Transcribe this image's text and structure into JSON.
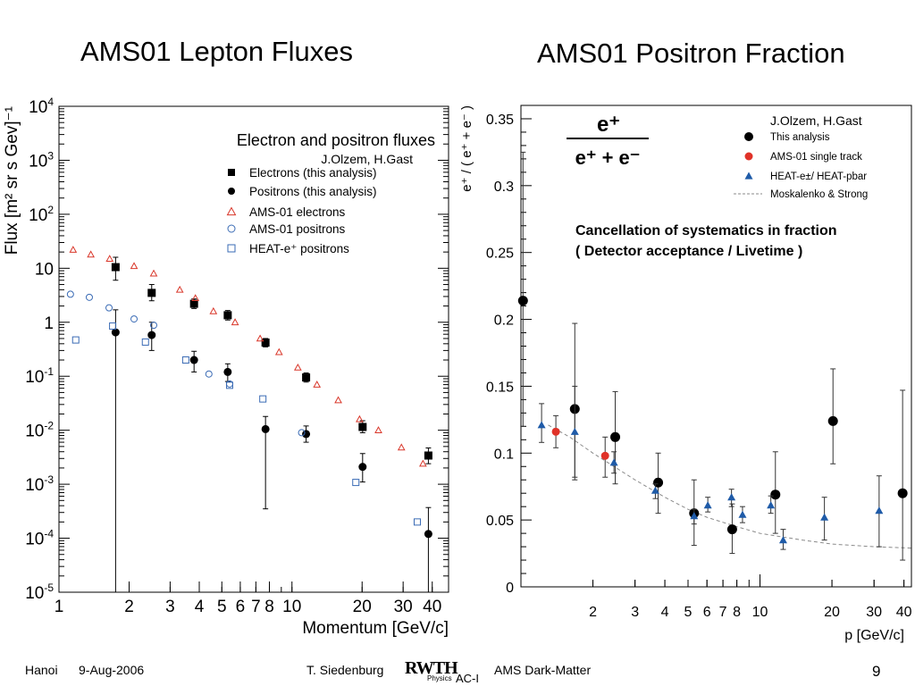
{
  "slide": {
    "title_left": "AMS01 Lepton Fluxes",
    "title_right": "AMS01 Positron Fraction",
    "footer": {
      "place": "Hanoi",
      "date": "9-Aug-2006",
      "author": "T. Siedenburg",
      "logo_text": "RWTH",
      "logo_sub": "Physics",
      "logo_suffix": "AC-I",
      "topic": "AMS Dark-Matter",
      "page": "9"
    }
  },
  "chart_data": [
    {
      "type": "scatter",
      "title": "Electron and positron fluxes",
      "subtitle": "J.Olzem, H.Gast",
      "xlabel": "Momentum [GeV/c]",
      "ylabel": "Flux [m² sr s Gev]⁻¹",
      "x_scale": "log",
      "y_scale": "log",
      "xlim": [
        1,
        47
      ],
      "ylim": [
        1e-05,
        10000
      ],
      "x_ticks": [
        1,
        2,
        3,
        4,
        5,
        6,
        7,
        8,
        10,
        20,
        30,
        40
      ],
      "x_tick_labels": [
        "1",
        "2",
        "3",
        "4",
        "5",
        "6",
        "7",
        "8",
        "10",
        "20",
        "30",
        "40"
      ],
      "y_ticks": [
        1e-05,
        0.0001,
        0.001,
        0.01,
        0.1,
        1,
        10,
        100,
        1000,
        10000
      ],
      "y_tick_labels": [
        {
          "base": "10",
          "exp": "-5"
        },
        {
          "base": "10",
          "exp": "-4"
        },
        {
          "base": "10",
          "exp": "-3"
        },
        {
          "base": "10",
          "exp": "-2"
        },
        {
          "base": "10",
          "exp": "-1"
        },
        {
          "base": "1",
          "exp": ""
        },
        {
          "base": "10",
          "exp": ""
        },
        {
          "base": "10",
          "exp": "2"
        },
        {
          "base": "10",
          "exp": "3"
        },
        {
          "base": "10",
          "exp": "4"
        }
      ],
      "legend_position": "top-right",
      "series": [
        {
          "name": "Electrons (this analysis)",
          "marker": "filled-square",
          "color": "#000000",
          "points": [
            {
              "x": 1.75,
              "y": 10.5,
              "ylo": 6,
              "yhi": 16
            },
            {
              "x": 2.5,
              "y": 3.5,
              "ylo": 2.5,
              "yhi": 5
            },
            {
              "x": 3.8,
              "y": 2.2,
              "ylo": 1.8,
              "yhi": 2.7
            },
            {
              "x": 5.3,
              "y": 1.35,
              "ylo": 1.1,
              "yhi": 1.65
            },
            {
              "x": 7.7,
              "y": 0.42,
              "ylo": 0.35,
              "yhi": 0.5
            },
            {
              "x": 11.5,
              "y": 0.095,
              "ylo": 0.078,
              "yhi": 0.115
            },
            {
              "x": 20.1,
              "y": 0.0115,
              "ylo": 0.009,
              "yhi": 0.015
            },
            {
              "x": 38.5,
              "y": 0.0034,
              "ylo": 0.0024,
              "yhi": 0.0047
            }
          ]
        },
        {
          "name": "Positrons (this analysis)",
          "marker": "filled-circle",
          "color": "#000000",
          "points": [
            {
              "x": 1.75,
              "y": 0.65,
              "ylo": 1e-05,
              "yhi": 1.7
            },
            {
              "x": 2.5,
              "y": 0.58,
              "ylo": 0.3,
              "yhi": 1.0
            },
            {
              "x": 3.8,
              "y": 0.2,
              "ylo": 0.12,
              "yhi": 0.29
            },
            {
              "x": 5.3,
              "y": 0.12,
              "ylo": 0.08,
              "yhi": 0.17
            },
            {
              "x": 7.7,
              "y": 0.0105,
              "ylo": 0.00035,
              "yhi": 0.018
            },
            {
              "x": 11.5,
              "y": 0.0085,
              "ylo": 0.006,
              "yhi": 0.012
            },
            {
              "x": 20.1,
              "y": 0.0021,
              "ylo": 0.0011,
              "yhi": 0.0037
            },
            {
              "x": 38.5,
              "y": 0.00012,
              "ylo": 1e-05,
              "yhi": 0.00037
            }
          ]
        },
        {
          "name": "AMS-01 electrons",
          "marker": "open-triangle",
          "color": "#d9372a",
          "points": [
            {
              "x": 1.15,
              "y": 22
            },
            {
              "x": 1.37,
              "y": 18
            },
            {
              "x": 1.65,
              "y": 15
            },
            {
              "x": 2.1,
              "y": 11
            },
            {
              "x": 2.55,
              "y": 8
            },
            {
              "x": 3.3,
              "y": 4
            },
            {
              "x": 3.85,
              "y": 2.8
            },
            {
              "x": 4.6,
              "y": 1.6
            },
            {
              "x": 5.7,
              "y": 1.0
            },
            {
              "x": 7.3,
              "y": 0.5
            },
            {
              "x": 8.8,
              "y": 0.28
            },
            {
              "x": 10.6,
              "y": 0.145
            },
            {
              "x": 12.8,
              "y": 0.07
            },
            {
              "x": 15.8,
              "y": 0.036
            },
            {
              "x": 19.5,
              "y": 0.016
            },
            {
              "x": 23.5,
              "y": 0.01
            },
            {
              "x": 29.5,
              "y": 0.0048
            },
            {
              "x": 36.5,
              "y": 0.0024
            }
          ]
        },
        {
          "name": "AMS-01 positrons",
          "marker": "open-circle",
          "color": "#3a6bb5",
          "points": [
            {
              "x": 1.12,
              "y": 3.3
            },
            {
              "x": 1.35,
              "y": 2.9
            },
            {
              "x": 1.64,
              "y": 1.85
            },
            {
              "x": 2.1,
              "y": 1.15
            },
            {
              "x": 2.55,
              "y": 0.88
            },
            {
              "x": 4.4,
              "y": 0.11
            },
            {
              "x": 5.4,
              "y": 0.072
            },
            {
              "x": 11.0,
              "y": 0.009
            }
          ]
        },
        {
          "name": "HEAT-e⁺ positrons",
          "marker": "open-square",
          "color": "#3a6bb5",
          "points": [
            {
              "x": 1.18,
              "y": 0.47
            },
            {
              "x": 1.7,
              "y": 0.85
            },
            {
              "x": 2.35,
              "y": 0.43
            },
            {
              "x": 3.5,
              "y": 0.2
            },
            {
              "x": 5.4,
              "y": 0.068
            },
            {
              "x": 7.5,
              "y": 0.038
            },
            {
              "x": 18.8,
              "y": 0.00108
            },
            {
              "x": 34.5,
              "y": 0.0002
            }
          ]
        }
      ]
    },
    {
      "type": "scatter",
      "title": "e⁺ / (e⁺ + e⁻)",
      "subtitle": "J.Olzem, H.Gast",
      "annotation": [
        "Cancellation of systematics in fraction",
        "( Detector acceptance / Livetime )"
      ],
      "xlabel": "p  [GeV/c]",
      "ylabel": "e⁺ / ( e⁺ + e⁻ )",
      "x_scale": "log",
      "y_scale": "linear",
      "xlim": [
        1,
        43
      ],
      "ylim": [
        0,
        0.36
      ],
      "x_ticks": [
        2,
        3,
        4,
        5,
        6,
        7,
        8,
        10,
        20,
        30,
        40
      ],
      "y_ticks": [
        0,
        0.05,
        0.1,
        0.15,
        0.2,
        0.25,
        0.3,
        0.35
      ],
      "y_tick_labels": [
        "0",
        "0.05",
        "0.1",
        "0.15",
        "0.2",
        "0.25",
        "0.3",
        "0.35"
      ],
      "legend_position": "top-right",
      "series": [
        {
          "name": "This analysis",
          "marker": "filled-circle",
          "color": "#000000",
          "points": [
            {
              "x": 1.02,
              "y": 0.214,
              "ylo": 0.12,
              "yhi": 0.325
            },
            {
              "x": 1.68,
              "y": 0.133,
              "ylo": 0.08,
              "yhi": 0.197
            },
            {
              "x": 2.48,
              "y": 0.112,
              "ylo": 0.077,
              "yhi": 0.146
            },
            {
              "x": 3.75,
              "y": 0.078,
              "ylo": 0.055,
              "yhi": 0.1
            },
            {
              "x": 5.3,
              "y": 0.055,
              "ylo": 0.031,
              "yhi": 0.08
            },
            {
              "x": 7.65,
              "y": 0.043,
              "ylo": 0.025,
              "yhi": 0.062
            },
            {
              "x": 11.6,
              "y": 0.069,
              "ylo": 0.04,
              "yhi": 0.101
            },
            {
              "x": 20.2,
              "y": 0.124,
              "ylo": 0.092,
              "yhi": 0.163
            },
            {
              "x": 39.5,
              "y": 0.07,
              "ylo": 0.02,
              "yhi": 0.147
            }
          ]
        },
        {
          "name": "AMS-01 single track",
          "marker": "filled-circle",
          "color": "#e03228",
          "points": [
            {
              "x": 1.4,
              "y": 0.116,
              "ylo": 0.104,
              "yhi": 0.128
            },
            {
              "x": 2.25,
              "y": 0.098,
              "ylo": 0.082,
              "yhi": 0.112
            }
          ]
        },
        {
          "name": "HEAT-e±/ HEAT-pbar",
          "marker": "filled-triangle",
          "color": "#1f5ba8",
          "points": [
            {
              "x": 1.22,
              "y": 0.121,
              "ylo": 0.108,
              "yhi": 0.137
            },
            {
              "x": 1.68,
              "y": 0.116,
              "ylo": 0.082,
              "yhi": 0.15
            },
            {
              "x": 2.45,
              "y": 0.093,
              "ylo": 0.085,
              "yhi": 0.101
            },
            {
              "x": 3.65,
              "y": 0.072,
              "ylo": 0.066,
              "yhi": 0.077
            },
            {
              "x": 5.3,
              "y": 0.053,
              "ylo": 0.047,
              "yhi": 0.058
            },
            {
              "x": 6.05,
              "y": 0.061,
              "ylo": 0.056,
              "yhi": 0.067
            },
            {
              "x": 7.6,
              "y": 0.067,
              "ylo": 0.06,
              "yhi": 0.073
            },
            {
              "x": 8.45,
              "y": 0.054,
              "ylo": 0.048,
              "yhi": 0.06
            },
            {
              "x": 11.1,
              "y": 0.061,
              "ylo": 0.055,
              "yhi": 0.068
            },
            {
              "x": 12.5,
              "y": 0.035,
              "ylo": 0.028,
              "yhi": 0.043
            },
            {
              "x": 18.6,
              "y": 0.052,
              "ylo": 0.035,
              "yhi": 0.067
            },
            {
              "x": 31.5,
              "y": 0.057,
              "ylo": 0.03,
              "yhi": 0.083
            }
          ]
        },
        {
          "name": "Moskalenko & Strong",
          "marker": "dashed-line",
          "color": "#8a8a8a",
          "curve": [
            {
              "x": 1.3,
              "y": 0.121
            },
            {
              "x": 1.6,
              "y": 0.112
            },
            {
              "x": 2.0,
              "y": 0.1
            },
            {
              "x": 2.5,
              "y": 0.089
            },
            {
              "x": 3.0,
              "y": 0.08
            },
            {
              "x": 4.0,
              "y": 0.067
            },
            {
              "x": 5.0,
              "y": 0.058
            },
            {
              "x": 6.0,
              "y": 0.052
            },
            {
              "x": 8.0,
              "y": 0.045
            },
            {
              "x": 10.0,
              "y": 0.04
            },
            {
              "x": 15.0,
              "y": 0.035
            },
            {
              "x": 20.0,
              "y": 0.032
            },
            {
              "x": 30.0,
              "y": 0.03
            },
            {
              "x": 43.0,
              "y": 0.029
            }
          ]
        }
      ]
    }
  ]
}
